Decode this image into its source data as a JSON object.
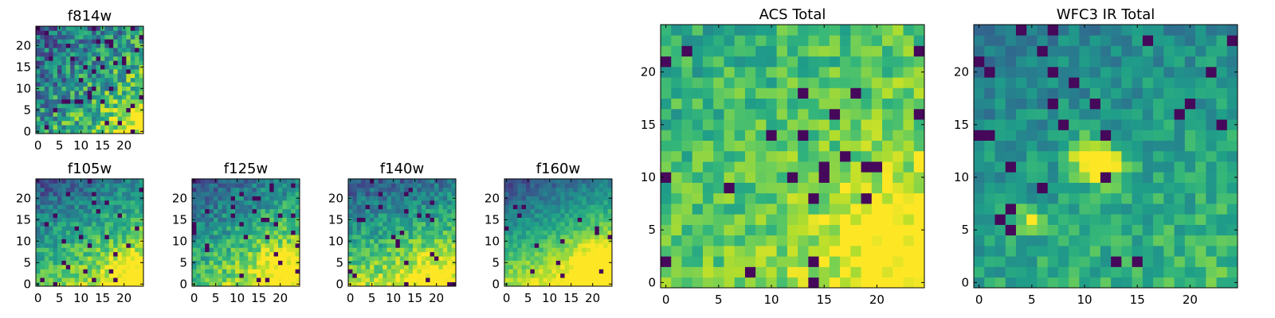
{
  "chart_data": [
    {
      "type": "heatmap",
      "title": "f814w",
      "xticks": [
        0,
        5,
        10,
        15,
        20
      ],
      "yticks": [
        0,
        5,
        10,
        15,
        20
      ],
      "xlim": [
        -0.5,
        24.5
      ],
      "ylim": [
        -0.5,
        24.5
      ],
      "colormap": "viridis",
      "grid_size": [
        25,
        25
      ],
      "intensity_pattern": "noisy, brightest at bottom-right"
    },
    {
      "type": "heatmap",
      "title": "f105w",
      "xticks": [
        0,
        5,
        10,
        15,
        20
      ],
      "yticks": [
        0,
        5,
        10,
        15,
        20
      ],
      "xlim": [
        -0.5,
        24.5
      ],
      "ylim": [
        -0.5,
        24.5
      ],
      "colormap": "viridis",
      "grid_size": [
        25,
        25
      ],
      "intensity_pattern": "dark at top, bright at bottom-right"
    },
    {
      "type": "heatmap",
      "title": "f125w",
      "xticks": [
        0,
        5,
        10,
        15,
        20
      ],
      "yticks": [
        0,
        5,
        10,
        15,
        20
      ],
      "xlim": [
        -0.5,
        24.5
      ],
      "ylim": [
        -0.5,
        24.5
      ],
      "colormap": "viridis",
      "grid_size": [
        25,
        25
      ],
      "intensity_pattern": "dark at top, bright at bottom-right"
    },
    {
      "type": "heatmap",
      "title": "f140w",
      "xticks": [
        0,
        5,
        10,
        15,
        20
      ],
      "yticks": [
        0,
        5,
        10,
        15,
        20
      ],
      "xlim": [
        -0.5,
        24.5
      ],
      "ylim": [
        -0.5,
        24.5
      ],
      "colormap": "viridis",
      "grid_size": [
        25,
        25
      ],
      "intensity_pattern": "dark at top, bright at bottom"
    },
    {
      "type": "heatmap",
      "title": "f160w",
      "xticks": [
        0,
        5,
        10,
        15,
        20
      ],
      "yticks": [
        0,
        5,
        10,
        15,
        20
      ],
      "xlim": [
        -0.5,
        24.5
      ],
      "ylim": [
        -0.5,
        24.5
      ],
      "colormap": "viridis",
      "grid_size": [
        25,
        25
      ],
      "intensity_pattern": "dark at top, bright at bottom-right"
    },
    {
      "type": "heatmap",
      "title": "ACS Total",
      "xticks": [
        0,
        5,
        10,
        15,
        20
      ],
      "yticks": [
        0,
        5,
        10,
        15,
        20
      ],
      "xlim": [
        -0.5,
        24.5
      ],
      "ylim": [
        -0.5,
        24.5
      ],
      "colormap": "viridis",
      "grid_size": [
        25,
        25
      ],
      "intensity_pattern": "mostly green-yellow, brightest at bottom-right"
    },
    {
      "type": "heatmap",
      "title": "WFC3 IR Total",
      "xticks": [
        0,
        5,
        10,
        15,
        20
      ],
      "yticks": [
        0,
        5,
        10,
        15,
        20
      ],
      "xlim": [
        -0.5,
        24.5
      ],
      "ylim": [
        -0.5,
        24.5
      ],
      "colormap": "viridis",
      "grid_size": [
        25,
        25
      ],
      "intensity_pattern": "mostly teal-green, bright spots near x=10-13 y=11-13"
    }
  ]
}
